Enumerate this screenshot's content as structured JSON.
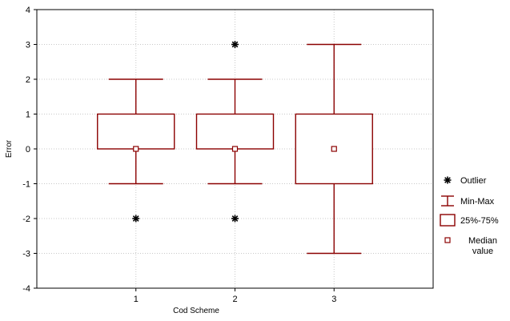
{
  "chart_data": {
    "type": "box",
    "title": "",
    "xlabel": "Cod Scheme",
    "ylabel": "Error",
    "ylim": [
      -4,
      4
    ],
    "yticks": [
      -4,
      -3,
      -2,
      -1,
      0,
      1,
      2,
      3,
      4
    ],
    "yticklabels": [
      "-4",
      "-3",
      "-2",
      "-1",
      "0",
      "1",
      "2",
      "3",
      "4"
    ],
    "xlim": [
      0,
      4
    ],
    "categories": [
      "1",
      "2",
      "3"
    ],
    "grid": true,
    "legend_position": "right",
    "series": [
      {
        "x": 1,
        "min": -1,
        "q1": 0,
        "median": 0,
        "q3": 1,
        "max": 2,
        "outliers": [
          -2
        ]
      },
      {
        "x": 2,
        "min": -1,
        "q1": 0,
        "median": 0,
        "q3": 1,
        "max": 2,
        "outliers": [
          3,
          -2
        ]
      },
      {
        "x": 3,
        "min": -3,
        "q1": -1,
        "median": 0,
        "q3": 1,
        "max": 3,
        "outliers": []
      }
    ],
    "legend": [
      {
        "symbol": "outlier",
        "label": "Outlier"
      },
      {
        "symbol": "minmax",
        "label": "Min-Max"
      },
      {
        "symbol": "box",
        "label": "25%-75%"
      },
      {
        "symbol": "median",
        "label": "Median value"
      }
    ],
    "colors": {
      "box": "#8b0000",
      "outlier": "#000000",
      "grid": "#c8c8c8"
    }
  }
}
